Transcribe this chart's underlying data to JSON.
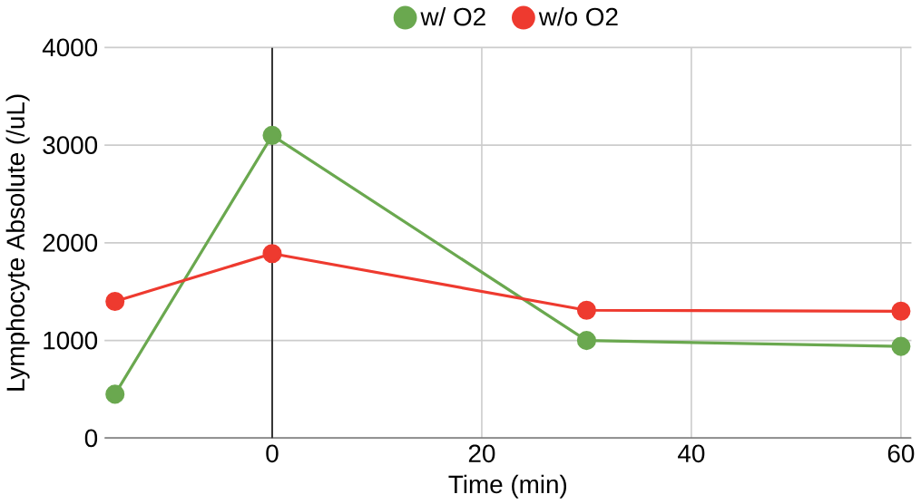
{
  "chart_data": {
    "type": "line",
    "xlabel": "Time (min)",
    "ylabel": "Lymphocyte Absolute (/uL)",
    "x": [
      -15,
      0,
      30,
      60
    ],
    "series": [
      {
        "name": "w/ O2",
        "color": "#6aa84f",
        "values": [
          450,
          3100,
          1000,
          940
        ]
      },
      {
        "name": "w/o O2",
        "color": "#ee3a2f",
        "values": [
          1400,
          1890,
          1310,
          1300
        ]
      }
    ],
    "xlim": [
      -16,
      61
    ],
    "xticks": [
      0,
      20,
      40,
      60
    ],
    "ylim": [
      0,
      4000
    ],
    "yticks": [
      0,
      1000,
      2000,
      3000,
      4000
    ],
    "ref_lines": [
      {
        "axis": "x",
        "value": 0,
        "color": "#333333"
      }
    ],
    "grid": true,
    "legend": "top",
    "marker": "circle",
    "line_style": "solid"
  }
}
